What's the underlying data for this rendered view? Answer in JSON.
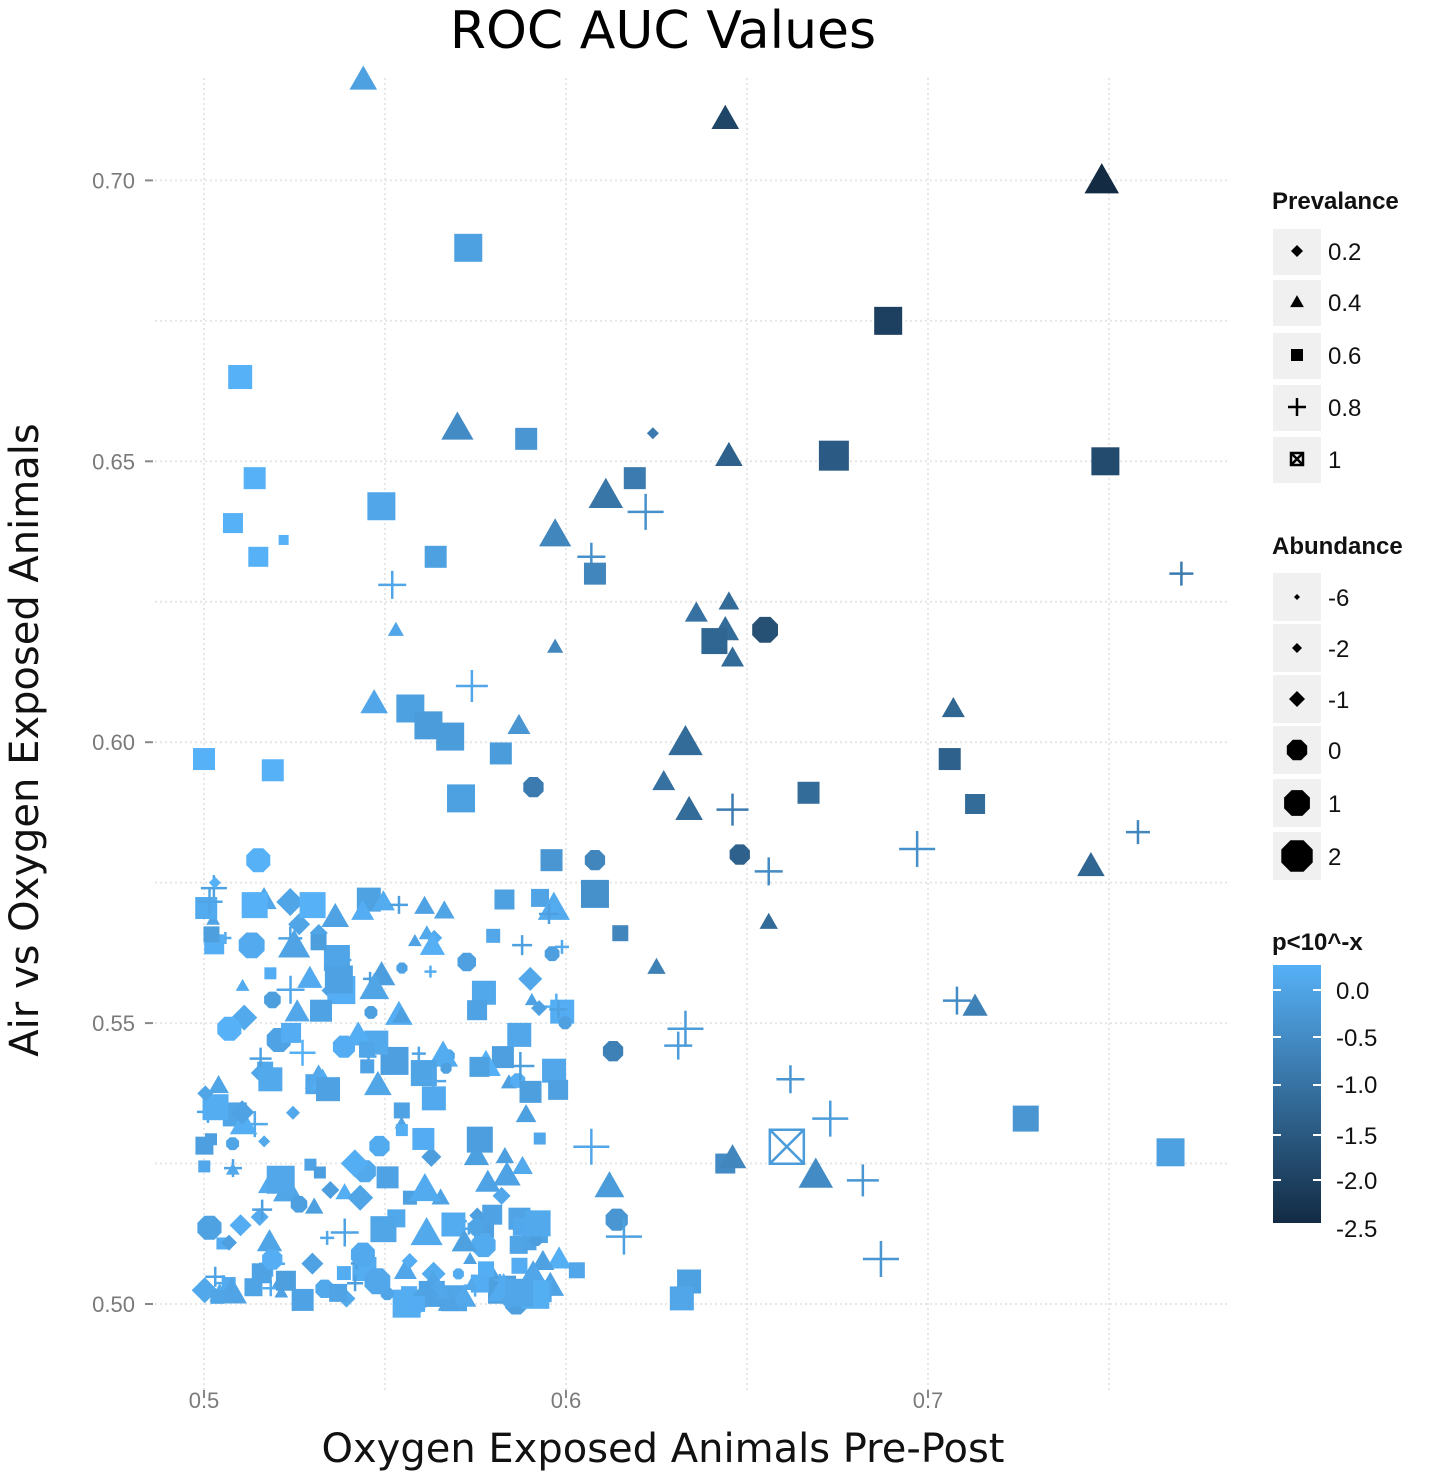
{
  "chart_data": {
    "type": "scatter",
    "title": "ROC AUC Values",
    "xlabel": "Oxygen Exposed Animals Pre-Post",
    "ylabel": "Air vs Oxygen Exposed Animals",
    "xlim": [
      0.485,
      0.79
    ],
    "ylim": [
      0.485,
      0.723
    ],
    "x_ticks": [
      {
        "value": 0.5,
        "label": "0.5"
      },
      {
        "value": 0.6,
        "label": "0.6"
      },
      {
        "value": 0.7,
        "label": "0.7"
      }
    ],
    "y_ticks": [
      {
        "value": 0.5,
        "label": "0.50"
      },
      {
        "value": 0.55,
        "label": "0.55"
      },
      {
        "value": 0.6,
        "label": "0.60"
      },
      {
        "value": 0.65,
        "label": "0.65"
      },
      {
        "value": 0.7,
        "label": "0.70"
      }
    ],
    "grid": true,
    "color_scale": {
      "low": "#56b1f7",
      "high": "#132b43"
    },
    "legend_prevalence": {
      "title": "Prevalance",
      "items": [
        {
          "label": "0.2",
          "shape": "diamond"
        },
        {
          "label": "0.4",
          "shape": "triangle"
        },
        {
          "label": "0.6",
          "shape": "square"
        },
        {
          "label": "0.8",
          "shape": "plus"
        },
        {
          "label": "1",
          "shape": "square-cross"
        }
      ]
    },
    "legend_abundance": {
      "title": "Abundance",
      "items": [
        {
          "label": "-6",
          "size": 3
        },
        {
          "label": "-2",
          "size": 5
        },
        {
          "label": "-1",
          "size": 8
        },
        {
          "label": "0",
          "size": 11
        },
        {
          "label": "1",
          "size": 14
        },
        {
          "label": "2",
          "size": 17
        }
      ]
    },
    "legend_color": {
      "title": "p<10^-x",
      "labels": [
        "0.0",
        "-0.5",
        "-1.0",
        "-1.5",
        "-2.0",
        "-2.5"
      ],
      "values": [
        0.0,
        -0.5,
        -1.0,
        -1.5,
        -2.0,
        -2.5
      ]
    },
    "highlight_points": [
      {
        "x": 0.544,
        "y": 0.718,
        "shape": "triangle",
        "size": 12,
        "p": -0.3
      },
      {
        "x": 0.644,
        "y": 0.711,
        "shape": "triangle",
        "size": 12,
        "p": -2.0
      },
      {
        "x": 0.748,
        "y": 0.7,
        "shape": "triangle",
        "size": 15,
        "p": -2.5
      },
      {
        "x": 0.573,
        "y": 0.688,
        "shape": "square",
        "size": 14,
        "p": -0.3
      },
      {
        "x": 0.689,
        "y": 0.675,
        "shape": "square",
        "size": 14,
        "p": -2.1
      },
      {
        "x": 0.51,
        "y": 0.665,
        "shape": "square",
        "size": 12,
        "p": 0.0
      },
      {
        "x": 0.57,
        "y": 0.656,
        "shape": "triangle",
        "size": 14,
        "p": -0.7
      },
      {
        "x": 0.589,
        "y": 0.654,
        "shape": "square",
        "size": 11,
        "p": -0.5
      },
      {
        "x": 0.624,
        "y": 0.655,
        "shape": "diamond",
        "size": 6,
        "p": -1.0
      },
      {
        "x": 0.674,
        "y": 0.651,
        "shape": "square",
        "size": 15,
        "p": -1.6
      },
      {
        "x": 0.645,
        "y": 0.651,
        "shape": "triangle",
        "size": 12,
        "p": -1.5
      },
      {
        "x": 0.749,
        "y": 0.65,
        "shape": "square",
        "size": 14,
        "p": -1.9
      },
      {
        "x": 0.514,
        "y": 0.647,
        "shape": "square",
        "size": 11,
        "p": 0.0
      },
      {
        "x": 0.619,
        "y": 0.647,
        "shape": "square",
        "size": 11,
        "p": -1.0
      },
      {
        "x": 0.611,
        "y": 0.644,
        "shape": "triangle",
        "size": 15,
        "p": -1.1
      },
      {
        "x": 0.549,
        "y": 0.642,
        "shape": "square",
        "size": 14,
        "p": -0.2
      },
      {
        "x": 0.622,
        "y": 0.641,
        "shape": "plus",
        "size": 18,
        "p": -0.6
      },
      {
        "x": 0.508,
        "y": 0.639,
        "shape": "square",
        "size": 10,
        "p": 0.0
      },
      {
        "x": 0.597,
        "y": 0.637,
        "shape": "triangle",
        "size": 14,
        "p": -0.8
      },
      {
        "x": 0.522,
        "y": 0.636,
        "shape": "square",
        "size": 5,
        "p": 0.0
      },
      {
        "x": 0.607,
        "y": 0.633,
        "shape": "plus",
        "size": 14,
        "p": -0.6
      },
      {
        "x": 0.515,
        "y": 0.633,
        "shape": "square",
        "size": 10,
        "p": 0.0
      },
      {
        "x": 0.564,
        "y": 0.633,
        "shape": "square",
        "size": 11,
        "p": -0.3
      },
      {
        "x": 0.608,
        "y": 0.63,
        "shape": "square",
        "size": 11,
        "p": -0.8
      },
      {
        "x": 0.77,
        "y": 0.63,
        "shape": "plus",
        "size": 12,
        "p": -1.0
      },
      {
        "x": 0.552,
        "y": 0.628,
        "shape": "plus",
        "size": 14,
        "p": -0.2
      },
      {
        "x": 0.645,
        "y": 0.625,
        "shape": "triangle",
        "size": 9,
        "p": -1.3
      },
      {
        "x": 0.636,
        "y": 0.623,
        "shape": "triangle",
        "size": 10,
        "p": -1.2
      },
      {
        "x": 0.644,
        "y": 0.62,
        "shape": "triangle",
        "size": 12,
        "p": -1.3
      },
      {
        "x": 0.553,
        "y": 0.62,
        "shape": "triangle",
        "size": 7,
        "p": -0.2
      },
      {
        "x": 0.655,
        "y": 0.62,
        "shape": "octagon",
        "size": 14,
        "p": -1.8
      },
      {
        "x": 0.641,
        "y": 0.618,
        "shape": "square",
        "size": 13,
        "p": -1.4
      },
      {
        "x": 0.597,
        "y": 0.617,
        "shape": "triangle",
        "size": 7,
        "p": -0.8
      },
      {
        "x": 0.646,
        "y": 0.615,
        "shape": "triangle",
        "size": 10,
        "p": -1.3
      },
      {
        "x": 0.574,
        "y": 0.61,
        "shape": "plus",
        "size": 16,
        "p": -0.2
      },
      {
        "x": 0.547,
        "y": 0.607,
        "shape": "triangle",
        "size": 12,
        "p": -0.2
      },
      {
        "x": 0.557,
        "y": 0.606,
        "shape": "square",
        "size": 14,
        "p": -0.3
      },
      {
        "x": 0.562,
        "y": 0.603,
        "shape": "square",
        "size": 14,
        "p": -0.4
      },
      {
        "x": 0.707,
        "y": 0.606,
        "shape": "triangle",
        "size": 10,
        "p": -1.4
      },
      {
        "x": 0.587,
        "y": 0.603,
        "shape": "triangle",
        "size": 10,
        "p": -0.5
      },
      {
        "x": 0.633,
        "y": 0.6,
        "shape": "triangle",
        "size": 15,
        "p": -1.3
      },
      {
        "x": 0.568,
        "y": 0.601,
        "shape": "square",
        "size": 14,
        "p": -0.4
      },
      {
        "x": 0.5,
        "y": 0.597,
        "shape": "square",
        "size": 11,
        "p": 0.0
      },
      {
        "x": 0.582,
        "y": 0.598,
        "shape": "square",
        "size": 11,
        "p": -0.4
      },
      {
        "x": 0.706,
        "y": 0.597,
        "shape": "square",
        "size": 11,
        "p": -1.5
      },
      {
        "x": 0.519,
        "y": 0.595,
        "shape": "square",
        "size": 11,
        "p": 0.0
      },
      {
        "x": 0.627,
        "y": 0.593,
        "shape": "triangle",
        "size": 10,
        "p": -1.2
      },
      {
        "x": 0.591,
        "y": 0.592,
        "shape": "octagon",
        "size": 11,
        "p": -1.0
      },
      {
        "x": 0.667,
        "y": 0.591,
        "shape": "square",
        "size": 11,
        "p": -1.3
      },
      {
        "x": 0.571,
        "y": 0.59,
        "shape": "square",
        "size": 14,
        "p": -0.3
      },
      {
        "x": 0.713,
        "y": 0.589,
        "shape": "square",
        "size": 10,
        "p": -1.3
      },
      {
        "x": 0.634,
        "y": 0.588,
        "shape": "triangle",
        "size": 12,
        "p": -1.3
      },
      {
        "x": 0.646,
        "y": 0.588,
        "shape": "plus",
        "size": 16,
        "p": -1.0
      },
      {
        "x": 0.758,
        "y": 0.584,
        "shape": "plus",
        "size": 12,
        "p": -0.8
      },
      {
        "x": 0.697,
        "y": 0.581,
        "shape": "plus",
        "size": 18,
        "p": -0.6
      },
      {
        "x": 0.648,
        "y": 0.58,
        "shape": "octagon",
        "size": 11,
        "p": -1.5
      },
      {
        "x": 0.515,
        "y": 0.579,
        "shape": "octagon",
        "size": 13,
        "p": 0.0
      },
      {
        "x": 0.608,
        "y": 0.579,
        "shape": "octagon",
        "size": 11,
        "p": -0.8
      },
      {
        "x": 0.596,
        "y": 0.579,
        "shape": "square",
        "size": 11,
        "p": -0.5
      },
      {
        "x": 0.745,
        "y": 0.578,
        "shape": "triangle",
        "size": 12,
        "p": -1.4
      },
      {
        "x": 0.656,
        "y": 0.577,
        "shape": "plus",
        "size": 14,
        "p": -0.7
      },
      {
        "x": 0.503,
        "y": 0.575,
        "shape": "diamond",
        "size": 6,
        "p": 0.0
      },
      {
        "x": 0.608,
        "y": 0.573,
        "shape": "square",
        "size": 14,
        "p": -0.6
      },
      {
        "x": 0.514,
        "y": 0.571,
        "shape": "square",
        "size": 13,
        "p": 0.0
      },
      {
        "x": 0.53,
        "y": 0.571,
        "shape": "square",
        "size": 13,
        "p": 0.0
      },
      {
        "x": 0.583,
        "y": 0.572,
        "shape": "square",
        "size": 10,
        "p": -0.3
      },
      {
        "x": 0.656,
        "y": 0.568,
        "shape": "triangle",
        "size": 8,
        "p": -1.3
      },
      {
        "x": 0.615,
        "y": 0.566,
        "shape": "square",
        "size": 8,
        "p": -0.8
      },
      {
        "x": 0.625,
        "y": 0.56,
        "shape": "triangle",
        "size": 8,
        "p": -0.9
      },
      {
        "x": 0.507,
        "y": 0.549,
        "shape": "octagon",
        "size": 13,
        "p": 0.0
      },
      {
        "x": 0.613,
        "y": 0.545,
        "shape": "octagon",
        "size": 11,
        "p": -0.9
      },
      {
        "x": 0.708,
        "y": 0.554,
        "shape": "plus",
        "size": 14,
        "p": -0.7
      },
      {
        "x": 0.713,
        "y": 0.553,
        "shape": "triangle",
        "size": 11,
        "p": -0.9
      },
      {
        "x": 0.633,
        "y": 0.549,
        "shape": "plus",
        "size": 18,
        "p": -0.4
      },
      {
        "x": 0.631,
        "y": 0.546,
        "shape": "plus",
        "size": 14,
        "p": -0.4
      },
      {
        "x": 0.662,
        "y": 0.54,
        "shape": "plus",
        "size": 14,
        "p": -0.5
      },
      {
        "x": 0.673,
        "y": 0.533,
        "shape": "plus",
        "size": 18,
        "p": -0.4
      },
      {
        "x": 0.727,
        "y": 0.533,
        "shape": "square",
        "size": 13,
        "p": -0.5
      },
      {
        "x": 0.607,
        "y": 0.528,
        "shape": "plus",
        "size": 18,
        "p": -0.2
      },
      {
        "x": 0.661,
        "y": 0.528,
        "shape": "square-cross",
        "size": 17,
        "p": -0.4
      },
      {
        "x": 0.767,
        "y": 0.527,
        "shape": "square",
        "size": 14,
        "p": -0.3
      },
      {
        "x": 0.644,
        "y": 0.525,
        "shape": "square",
        "size": 10,
        "p": -0.7
      },
      {
        "x": 0.646,
        "y": 0.526,
        "shape": "triangle",
        "size": 12,
        "p": -0.8
      },
      {
        "x": 0.669,
        "y": 0.523,
        "shape": "triangle",
        "size": 15,
        "p": -0.7
      },
      {
        "x": 0.682,
        "y": 0.522,
        "shape": "plus",
        "size": 16,
        "p": -0.5
      },
      {
        "x": 0.612,
        "y": 0.521,
        "shape": "triangle",
        "size": 13,
        "p": -0.4
      },
      {
        "x": 0.614,
        "y": 0.515,
        "shape": "octagon",
        "size": 12,
        "p": -0.5
      },
      {
        "x": 0.616,
        "y": 0.512,
        "shape": "plus",
        "size": 18,
        "p": -0.3
      },
      {
        "x": 0.687,
        "y": 0.508,
        "shape": "plus",
        "size": 18,
        "p": -0.5
      },
      {
        "x": 0.603,
        "y": 0.506,
        "shape": "square",
        "size": 8,
        "p": -0.2
      },
      {
        "x": 0.634,
        "y": 0.504,
        "shape": "square",
        "size": 12,
        "p": -0.3
      },
      {
        "x": 0.632,
        "y": 0.501,
        "shape": "square",
        "size": 12,
        "p": -0.2
      },
      {
        "x": 0.587,
        "y": 0.502,
        "shape": "square",
        "size": 14,
        "p": -0.2
      }
    ],
    "cluster": {
      "note": "dense cluster of many overlapping light-blue points",
      "x_range": [
        0.5,
        0.6
      ],
      "y_range": [
        0.5,
        0.575
      ],
      "count": 240,
      "p_range": [
        -0.6,
        0.0
      ]
    }
  }
}
